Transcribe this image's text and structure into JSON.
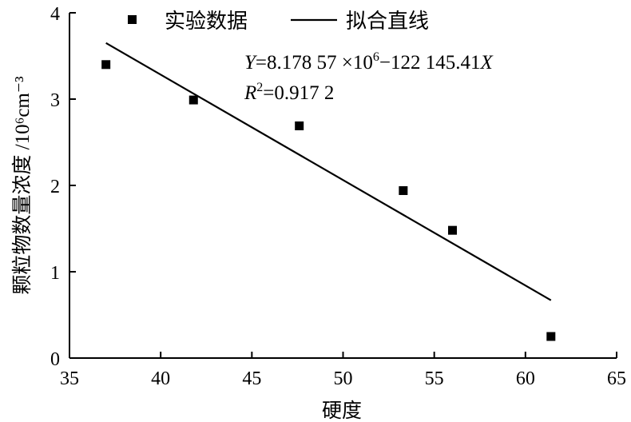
{
  "chart_data": {
    "type": "scatter",
    "xlabel": "硬度",
    "ylabel": "颗粒物数量浓度 /10⁶cm⁻³",
    "xlim": [
      35,
      65
    ],
    "ylim": [
      0,
      4
    ],
    "x_ticks": [
      "35",
      "40",
      "45",
      "50",
      "55",
      "60",
      "65"
    ],
    "y_ticks": [
      "0",
      "1",
      "2",
      "3",
      "4"
    ],
    "grid": false,
    "legend_position": "top",
    "series": [
      {
        "name": "实验数据",
        "marker": "square",
        "color": "#000000",
        "points": [
          {
            "x": 37.0,
            "y": 3.4
          },
          {
            "x": 41.8,
            "y": 2.99
          },
          {
            "x": 47.6,
            "y": 2.69
          },
          {
            "x": 53.3,
            "y": 1.94
          },
          {
            "x": 56.0,
            "y": 1.48
          },
          {
            "x": 61.4,
            "y": 0.25
          }
        ]
      },
      {
        "name": "拟合直线",
        "style": "line",
        "color": "#000000",
        "points": [
          {
            "x": 37.0,
            "y": 3.65
          },
          {
            "x": 61.4,
            "y": 0.67
          }
        ]
      }
    ],
    "annotations": {
      "equation_var": "Y",
      "equation_rhs_a": "=8.178 57 ×10",
      "equation_exp": "6",
      "equation_rhs_b": "−122 145.41",
      "equation_x": "X",
      "r2_var": "R",
      "r2_exp": "2",
      "r2_rhs": "=0.917 2"
    }
  }
}
